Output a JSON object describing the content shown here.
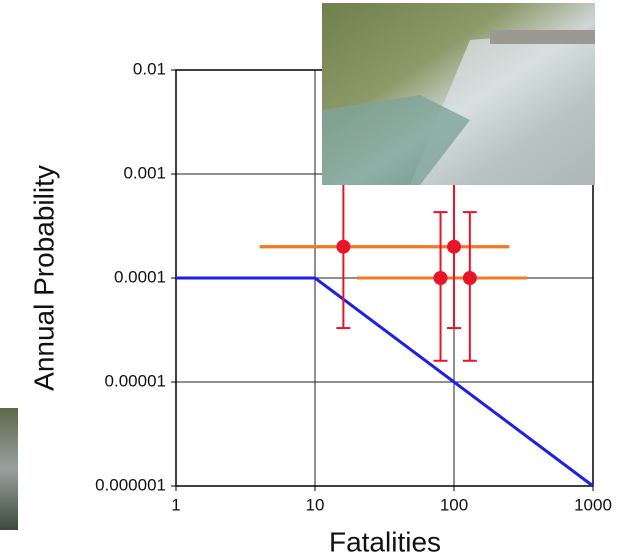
{
  "chart_data": {
    "type": "scatter",
    "xlabel": "Fatalities",
    "ylabel": "Annual Probability",
    "xscale": "log",
    "yscale": "log",
    "grid": true,
    "xlim": [
      1,
      1000
    ],
    "xticks": [
      1,
      10,
      100,
      1000
    ],
    "ylim": [
      1e-06,
      0.01
    ],
    "yticks": [
      1e-06,
      1e-05,
      0.0001,
      0.001,
      0.01
    ],
    "line": {
      "color": "#1f1fe6",
      "x": [
        1,
        10,
        1000
      ],
      "y": [
        0.0001,
        0.0001,
        1e-06
      ]
    },
    "points": {
      "color": "#e8142a",
      "error_color": "#e8142a",
      "x_error_color": "#f07a22",
      "x": [
        16,
        100,
        80,
        130
      ],
      "y": [
        0.0002,
        0.0002,
        0.0001,
        0.0001
      ],
      "y_low": [
        3.3e-05,
        3.3e-05,
        1.6e-05,
        1.6e-05
      ],
      "y_high": [
        0.0012,
        0.0012,
        0.00043,
        0.00043
      ],
      "x_low": [
        4,
        4,
        20,
        20
      ],
      "x_high": [
        250,
        250,
        335,
        335
      ]
    }
  }
}
